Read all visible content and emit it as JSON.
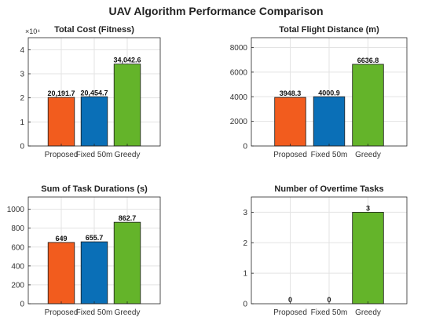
{
  "figure_title": "UAV Algorithm Performance Comparison",
  "colors": {
    "Proposed": "#f25c1e",
    "Fixed 50m": "#0a6fb7",
    "Greedy": "#64b42a"
  },
  "chart_data": [
    {
      "type": "bar",
      "title": "Total Cost (Fitness)",
      "categories": [
        "Proposed",
        "Fixed 50m",
        "Greedy"
      ],
      "values": [
        20191.7,
        20454.7,
        34042.6
      ],
      "value_labels": [
        "20,191.7",
        "20,454.7",
        "34,042.6"
      ],
      "ylim": [
        0,
        45000
      ],
      "yticks": [
        0,
        10000,
        20000,
        30000,
        40000
      ],
      "ytick_labels": [
        "0",
        "1",
        "2",
        "3",
        "4"
      ],
      "y_exponent": "×10⁴",
      "grid": true
    },
    {
      "type": "bar",
      "title": "Total Flight Distance (m)",
      "categories": [
        "Proposed",
        "Fixed 50m",
        "Greedy"
      ],
      "values": [
        3948.3,
        4000.9,
        6636.8
      ],
      "value_labels": [
        "3948.3",
        "4000.9",
        "6636.8"
      ],
      "ylim": [
        0,
        8800
      ],
      "yticks": [
        0,
        2000,
        4000,
        6000,
        8000
      ],
      "ytick_labels": [
        "0",
        "2000",
        "4000",
        "6000",
        "8000"
      ],
      "grid": true
    },
    {
      "type": "bar",
      "title": "Sum of Task Durations (s)",
      "categories": [
        "Proposed",
        "Fixed 50m",
        "Greedy"
      ],
      "values": [
        649,
        655.7,
        862.7
      ],
      "value_labels": [
        "649",
        "655.7",
        "862.7"
      ],
      "ylim": [
        0,
        1130
      ],
      "yticks": [
        0,
        200,
        400,
        600,
        800,
        1000
      ],
      "ytick_labels": [
        "0",
        "200",
        "400",
        "600",
        "800",
        "1000"
      ],
      "grid": true
    },
    {
      "type": "bar",
      "title": "Number of Overtime Tasks",
      "categories": [
        "Proposed",
        "Fixed 50m",
        "Greedy"
      ],
      "values": [
        0,
        0,
        3
      ],
      "value_labels": [
        "0",
        "0",
        "3"
      ],
      "ylim": [
        0,
        3.5
      ],
      "yticks": [
        0,
        1,
        2,
        3
      ],
      "ytick_labels": [
        "0",
        "1",
        "2",
        "3"
      ],
      "grid": true
    }
  ]
}
